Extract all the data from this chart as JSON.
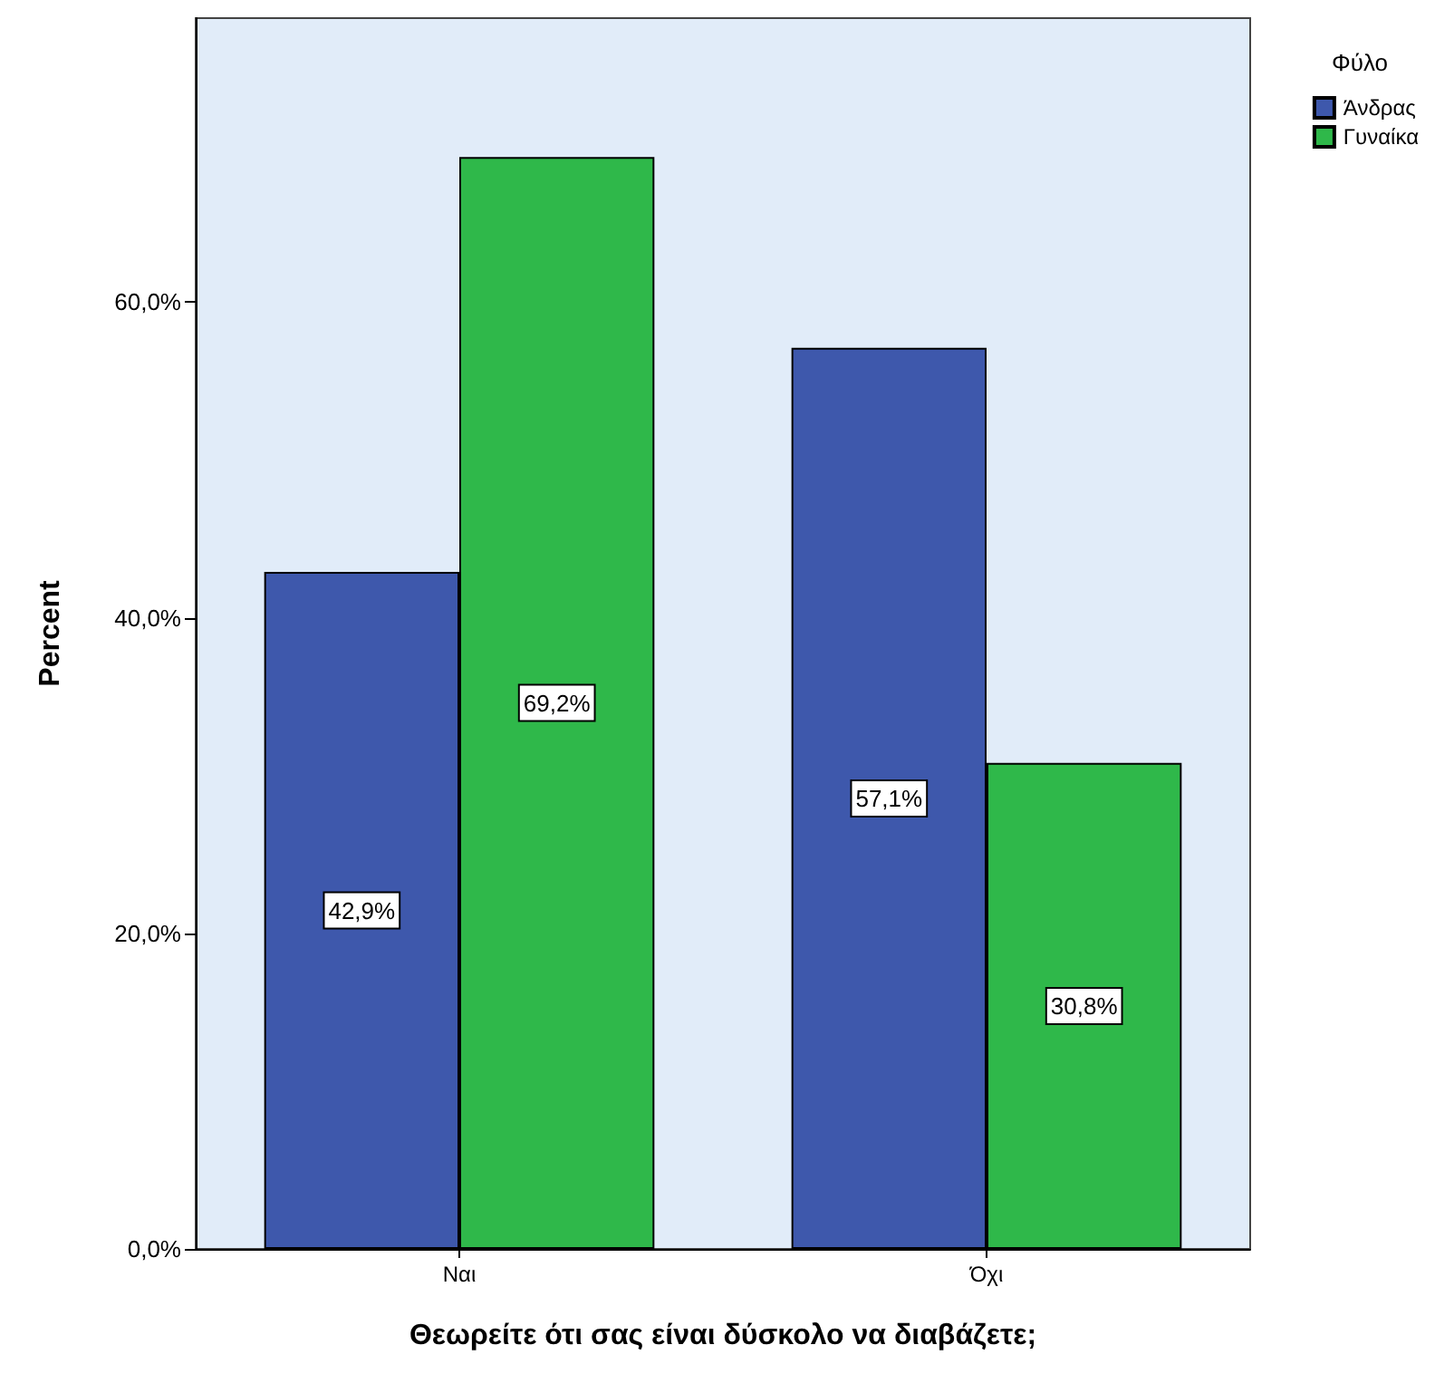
{
  "chart_data": {
    "type": "bar",
    "xlabel": "Θεωρείτε ότι σας είναι δύσκολο να διαβάζετε;",
    "ylabel": "Percent",
    "legend_title": "Φύλο",
    "legend": "top right",
    "grid": false,
    "categories": [
      "Ναι",
      "Όχι"
    ],
    "series": [
      {
        "name": "Άνδρας",
        "color": "#3e58ac",
        "values": [
          42.9,
          57.1
        ],
        "value_labels": [
          "42,9%",
          "57,1%"
        ]
      },
      {
        "name": "Γυναίκα",
        "color": "#2fb84a",
        "values": [
          69.2,
          30.8
        ],
        "value_labels": [
          "69,2%",
          "30,8%"
        ]
      }
    ],
    "ylim": [
      0,
      78
    ],
    "yticks": [
      {
        "value": 0,
        "label": "0,0%"
      },
      {
        "value": 20,
        "label": "20,0%"
      },
      {
        "value": 40,
        "label": "40,0%"
      },
      {
        "value": 60,
        "label": "60,0%"
      }
    ]
  }
}
